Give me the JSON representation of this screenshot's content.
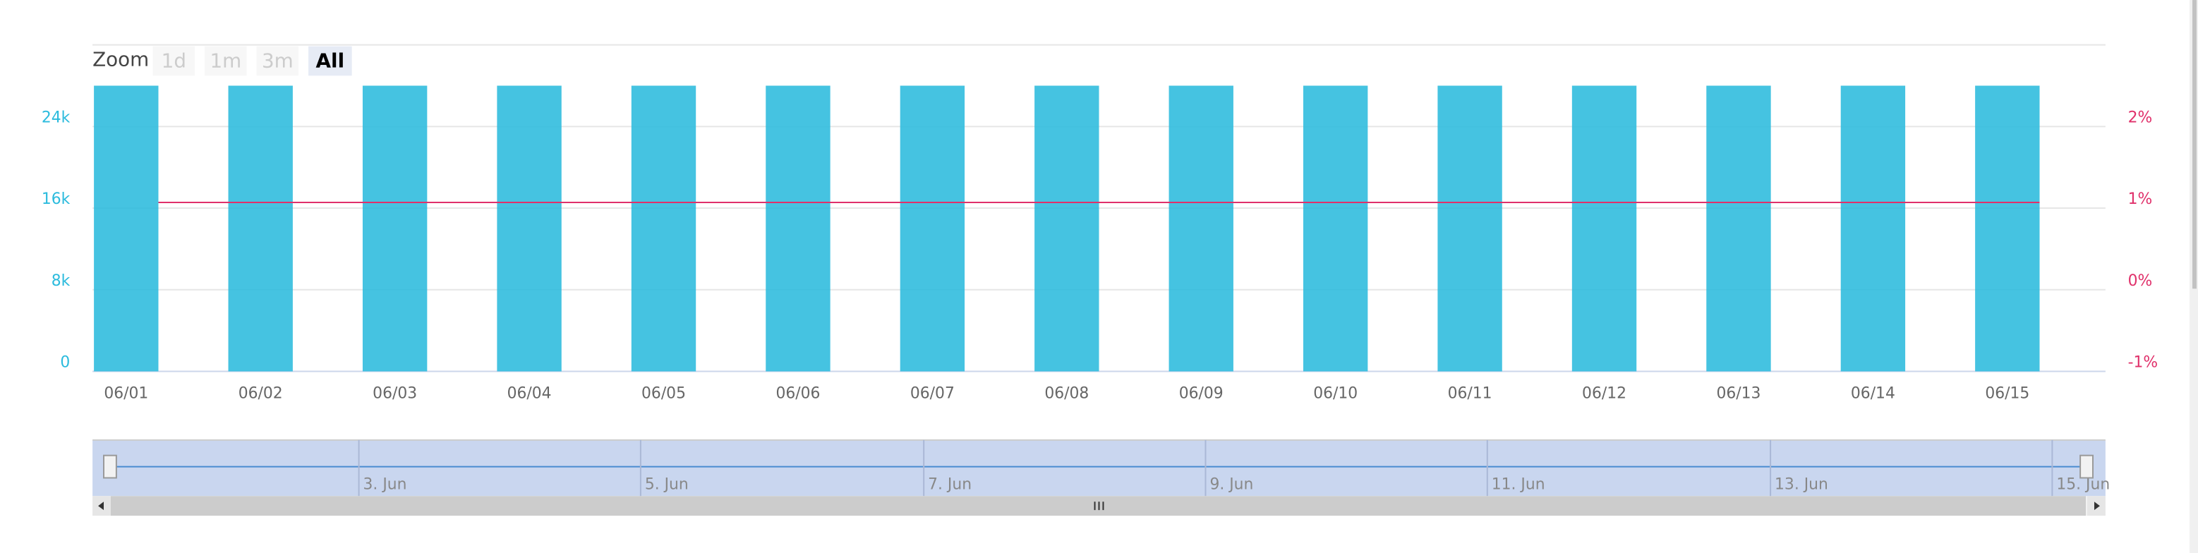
{
  "zoom": {
    "label": "Zoom",
    "buttons": [
      "1d",
      "1m",
      "3m",
      "All"
    ]
  },
  "chart_data": {
    "type": "combo",
    "categories": [
      "06/01",
      "06/02",
      "06/03",
      "06/04",
      "06/05",
      "06/06",
      "06/07",
      "06/08",
      "06/09",
      "06/10",
      "06/11",
      "06/12",
      "06/13",
      "06/14",
      "06/15"
    ],
    "series": [
      {
        "type": "bar",
        "color": "#2bbbdd",
        "values": [
          28000,
          28000,
          28000,
          28000,
          28000,
          28000,
          28000,
          28000,
          28000,
          28000,
          28000,
          28000,
          28000,
          28000,
          28000
        ]
      },
      {
        "type": "line",
        "axis": "y2",
        "color": "#e0306a",
        "values": [
          1.07,
          1.07,
          1.07,
          1.07,
          1.07,
          1.07,
          1.07,
          1.07,
          1.07,
          1.07,
          1.07,
          1.07,
          1.07,
          1.07,
          1.07
        ]
      }
    ],
    "ylim": [
      0,
      32000
    ],
    "yticks": [
      0,
      {
        "value": 8000,
        "label": "8k"
      },
      {
        "value": 16000,
        "label": "16k"
      },
      {
        "value": 24000,
        "label": "24k"
      }
    ],
    "y2lim": [
      -1,
      3
    ],
    "y2ticks": [
      {
        "value": -1,
        "label": "-1%"
      },
      {
        "value": 0,
        "label": "0%"
      },
      {
        "value": 1,
        "label": "1%"
      },
      {
        "value": 2,
        "label": "2%"
      }
    ],
    "grid": true
  },
  "navigator": {
    "x_labels": [
      "3. Jun",
      "5. Jun",
      "7. Jun",
      "9. Jun",
      "11. Jun",
      "13. Jun",
      "15. Jun"
    ]
  }
}
